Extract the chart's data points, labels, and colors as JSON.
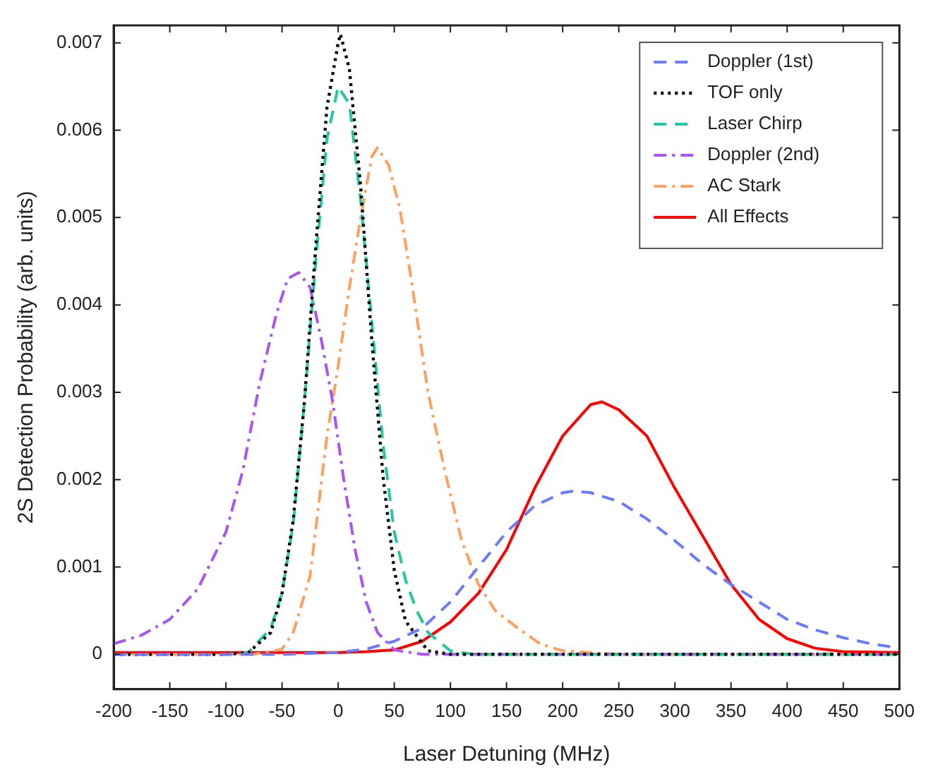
{
  "chart_data": {
    "type": "line",
    "xlabel": "Laser Detuning (MHz)",
    "ylabel": "2S Detection Probability (arb. units)",
    "xlim": [
      -200,
      500
    ],
    "xticks": [
      -200,
      -150,
      -100,
      -50,
      0,
      50,
      100,
      150,
      200,
      250,
      300,
      350,
      400,
      450,
      500
    ],
    "ylim": [
      -0.0004,
      0.0072
    ],
    "yticks": [
      0,
      0.001,
      0.002,
      0.003,
      0.004,
      0.005,
      0.006,
      0.007
    ],
    "legend": "top right",
    "marker": "none",
    "series": [
      {
        "name": "Doppler (1st)",
        "color": "#6b7bff",
        "line_style": "dashed",
        "x": [
          -200,
          -50,
          0,
          25,
          50,
          75,
          100,
          125,
          150,
          175,
          200,
          210,
          225,
          250,
          275,
          300,
          325,
          350,
          375,
          400,
          425,
          450,
          475,
          500
        ],
        "values": [
          0,
          0,
          2e-05,
          6e-05,
          0.00015,
          0.0003,
          0.0006,
          0.001,
          0.0014,
          0.0017,
          0.00185,
          0.00187,
          0.00185,
          0.00175,
          0.00155,
          0.0013,
          0.00103,
          0.0008,
          0.0006,
          0.0004,
          0.00028,
          0.00019,
          0.00012,
          7e-05
        ]
      },
      {
        "name": "TOF only",
        "color": "#000000",
        "line_style": "dotted",
        "x": [
          -200,
          -100,
          -80,
          -60,
          -50,
          -40,
          -30,
          -20,
          -10,
          0,
          2,
          10,
          20,
          30,
          40,
          50,
          60,
          80,
          100,
          200,
          500
        ],
        "values": [
          0,
          0,
          2e-05,
          0.00025,
          0.0007,
          0.00154,
          0.0029,
          0.00466,
          0.00626,
          0.007,
          0.0071,
          0.0067,
          0.00536,
          0.00359,
          0.00203,
          0.00096,
          0.00038,
          4e-05,
          0,
          0,
          0
        ]
      },
      {
        "name": "Laser Chirp",
        "color": "#22c9a0",
        "line_style": "dashed",
        "x": [
          -200,
          -100,
          -80,
          -60,
          -50,
          -40,
          -30,
          -20,
          -10,
          0,
          10,
          20,
          30,
          40,
          50,
          60,
          70,
          80,
          100,
          120,
          500
        ],
        "values": [
          0,
          0,
          2e-05,
          0.0003,
          0.0007,
          0.0015,
          0.0029,
          0.0045,
          0.0059,
          0.0065,
          0.0063,
          0.0052,
          0.0038,
          0.0024,
          0.0014,
          0.00085,
          0.0005,
          0.00025,
          4e-05,
          0,
          0
        ]
      },
      {
        "name": "Doppler (2nd)",
        "color": "#a855f7",
        "line_style": "dashdot",
        "x": [
          -200,
          -175,
          -150,
          -125,
          -100,
          -85,
          -70,
          -55,
          -45,
          -35,
          -25,
          -15,
          -5,
          5,
          15,
          25,
          35,
          50,
          75,
          500
        ],
        "values": [
          0.00012,
          0.00022,
          0.0004,
          0.00075,
          0.0014,
          0.0021,
          0.0031,
          0.0039,
          0.0043,
          0.00437,
          0.0042,
          0.0036,
          0.0029,
          0.002,
          0.0012,
          0.0006,
          0.00025,
          5e-05,
          0,
          0
        ]
      },
      {
        "name": "AC Stark",
        "color": "#ffa060",
        "line_style": "dashdot",
        "x": [
          -200,
          -75,
          -50,
          -40,
          -25,
          -10,
          0,
          10,
          20,
          30,
          35,
          45,
          55,
          65,
          80,
          95,
          110,
          125,
          140,
          160,
          180,
          200,
          250,
          500
        ],
        "values": [
          0,
          0,
          6e-05,
          0.00025,
          0.0009,
          0.0025,
          0.0033,
          0.0042,
          0.005,
          0.0057,
          0.0058,
          0.0056,
          0.0051,
          0.0043,
          0.003,
          0.0021,
          0.0013,
          0.0008,
          0.0005,
          0.0003,
          0.00012,
          4e-05,
          0,
          0
        ]
      },
      {
        "name": "All Effects",
        "color": "#ff0000",
        "line_style": "solid",
        "x": [
          -200,
          0,
          25,
          50,
          75,
          100,
          125,
          150,
          175,
          200,
          225,
          235,
          250,
          275,
          300,
          325,
          350,
          375,
          400,
          425,
          450,
          500
        ],
        "values": [
          2e-05,
          2e-05,
          3e-05,
          5e-05,
          0.00015,
          0.00037,
          0.0007,
          0.0012,
          0.0019,
          0.0025,
          0.00286,
          0.00289,
          0.0028,
          0.0025,
          0.0019,
          0.00135,
          0.0008,
          0.0004,
          0.00018,
          7e-05,
          3e-05,
          2e-05
        ]
      }
    ]
  }
}
